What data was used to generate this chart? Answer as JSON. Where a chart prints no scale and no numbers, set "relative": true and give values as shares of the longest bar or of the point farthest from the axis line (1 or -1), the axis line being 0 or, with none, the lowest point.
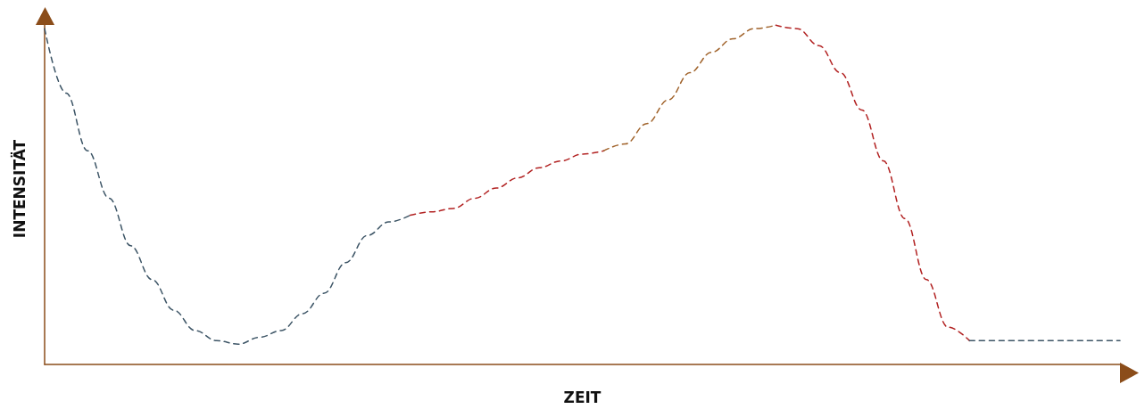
{
  "chart_data": {
    "type": "line",
    "xlabel": "ZEIT",
    "ylabel": "INTENSITÄT",
    "relative": true,
    "marker": "none",
    "line_style": "dashed",
    "categories": [
      null,
      null,
      null,
      null,
      null,
      null,
      null,
      null,
      null,
      null,
      null,
      null,
      null,
      null,
      null,
      null,
      null,
      null,
      null,
      null,
      null,
      null,
      null,
      null,
      null,
      null,
      null,
      null,
      null,
      null,
      null,
      null,
      null,
      null,
      null,
      null,
      null,
      null,
      null,
      null,
      null,
      null,
      null,
      null,
      null,
      null,
      null,
      null,
      null,
      null,
      null
    ],
    "series": [
      {
        "color": "#3d5566",
        "values": [
          0.99,
          0.8,
          0.63,
          0.49,
          0.35,
          0.25,
          0.16,
          0.1,
          0.07,
          0.06,
          0.08,
          0.1,
          0.15,
          0.21,
          0.3,
          0.38,
          0.42,
          0.44,
          null,
          null,
          null,
          null,
          null,
          null,
          null,
          null,
          null,
          null,
          null,
          null,
          null,
          null,
          null,
          null,
          null,
          null,
          null,
          null,
          null,
          null,
          null,
          null,
          null,
          null,
          null,
          null,
          null,
          null,
          null,
          null,
          null
        ]
      },
      {
        "color": "#b22222",
        "values": [
          null,
          null,
          null,
          null,
          null,
          null,
          null,
          null,
          null,
          null,
          null,
          null,
          null,
          null,
          null,
          null,
          null,
          0.44,
          0.45,
          0.46,
          0.49,
          0.52,
          0.55,
          0.58,
          0.6,
          0.62,
          0.63,
          null,
          null,
          null,
          null,
          null,
          null,
          null,
          null,
          null,
          null,
          null,
          null,
          null,
          null,
          null,
          null,
          null,
          null,
          null,
          null,
          null,
          null,
          null,
          null
        ]
      },
      {
        "color": "#a0622a",
        "values": [
          null,
          null,
          null,
          null,
          null,
          null,
          null,
          null,
          null,
          null,
          null,
          null,
          null,
          null,
          null,
          null,
          null,
          null,
          null,
          null,
          null,
          null,
          null,
          null,
          null,
          null,
          0.63,
          0.65,
          0.71,
          0.78,
          0.86,
          0.92,
          0.96,
          0.99,
          1,
          null,
          null,
          null,
          null,
          null,
          null,
          null,
          null,
          null,
          null,
          null,
          null,
          null,
          null,
          null,
          null
        ]
      },
      {
        "color": "#b22222",
        "values": [
          null,
          null,
          null,
          null,
          null,
          null,
          null,
          null,
          null,
          null,
          null,
          null,
          null,
          null,
          null,
          null,
          null,
          null,
          null,
          null,
          null,
          null,
          null,
          null,
          null,
          null,
          null,
          null,
          null,
          null,
          null,
          null,
          null,
          null,
          1,
          0.99,
          0.94,
          0.86,
          0.75,
          0.6,
          0.43,
          0.25,
          0.11,
          0.07,
          null,
          null,
          null,
          null,
          null,
          null,
          null
        ]
      },
      {
        "color": "#3d5566",
        "values": [
          null,
          null,
          null,
          null,
          null,
          null,
          null,
          null,
          null,
          null,
          null,
          null,
          null,
          null,
          null,
          null,
          null,
          null,
          null,
          null,
          null,
          null,
          null,
          null,
          null,
          null,
          null,
          null,
          null,
          null,
          null,
          null,
          null,
          null,
          null,
          null,
          null,
          null,
          null,
          null,
          null,
          null,
          null,
          0.07,
          0.07,
          0.07,
          0.07,
          0.07,
          0.07,
          0.07,
          0.07
        ]
      }
    ]
  }
}
